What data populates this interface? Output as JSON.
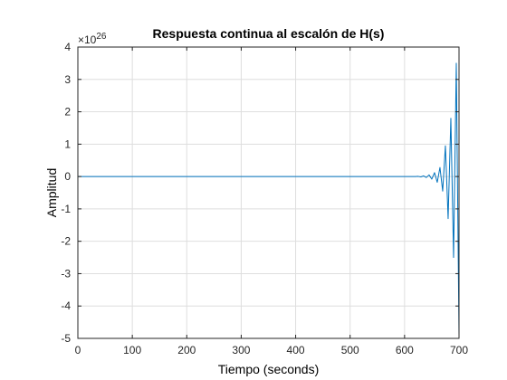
{
  "chart_data": {
    "type": "line",
    "title": "Respuesta continua al escalón de H(s)",
    "xlabel": "Tiempo (seconds)",
    "ylabel": "Amplitud",
    "y_exponent_prefix": "×10",
    "y_exponent_power": "26",
    "xlim": [
      0,
      700
    ],
    "ylim": [
      -5,
      4
    ],
    "x_ticks": [
      "0",
      "100",
      "200",
      "300",
      "400",
      "500",
      "600",
      "700"
    ],
    "y_ticks": [
      "4",
      "3",
      "2",
      "1",
      "0",
      "-1",
      "-2",
      "-3",
      "-4",
      "-5"
    ],
    "grid": true,
    "series": [
      {
        "color": "#0072BD",
        "x": [
          0,
          600,
          620,
          625,
          630,
          635,
          640,
          645,
          650,
          655,
          660,
          665,
          670,
          675,
          680,
          685,
          690,
          695,
          700
        ],
        "y": [
          0,
          0,
          0,
          0.005,
          -0.01,
          0.02,
          -0.03,
          0.05,
          -0.08,
          0.12,
          -0.18,
          0.28,
          -0.45,
          0.95,
          -1.3,
          1.8,
          -2.5,
          3.5,
          -4.9
        ]
      }
    ],
    "line_color": "#0072BD"
  }
}
